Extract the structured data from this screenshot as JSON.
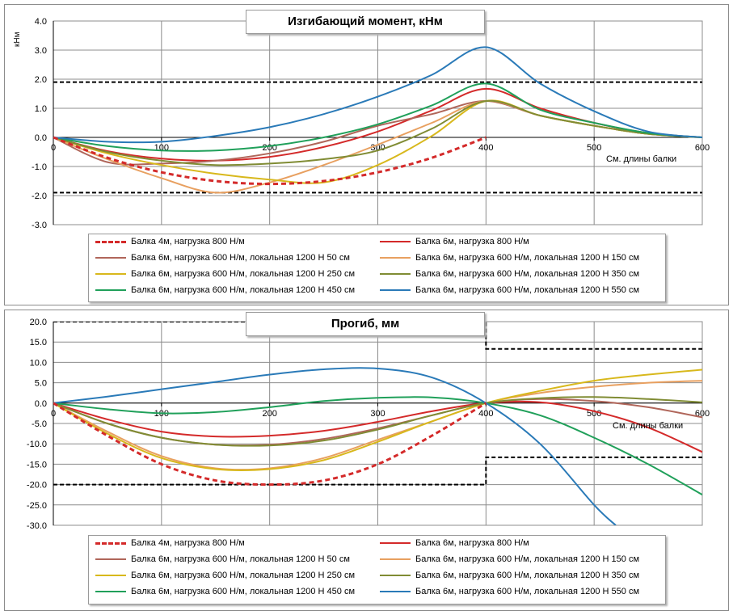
{
  "series_styles": [
    {
      "color": "#d42a2a",
      "dash": "6,4",
      "width": 3
    },
    {
      "color": "#d42a2a",
      "dash": "",
      "width": 2
    },
    {
      "color": "#b0665a",
      "dash": "",
      "width": 2
    },
    {
      "color": "#e8a060",
      "dash": "",
      "width": 2
    },
    {
      "color": "#d8b81c",
      "dash": "",
      "width": 2
    },
    {
      "color": "#808c34",
      "dash": "",
      "width": 2
    },
    {
      "color": "#20a05a",
      "dash": "",
      "width": 2
    },
    {
      "color": "#2a7ab8",
      "dash": "",
      "width": 2
    }
  ],
  "chart_data": [
    {
      "type": "line",
      "title": "Изгибающий  момент, кНм",
      "ylabel": "кНм",
      "xlabel": "См. длины балки",
      "xlim": [
        0,
        600
      ],
      "ylim": [
        -3,
        4
      ],
      "xticks": [
        "0",
        "100",
        "200",
        "300",
        "400",
        "500",
        "600"
      ],
      "yticks": [
        "4.0",
        "3.0",
        "2.0",
        "1.0",
        "0.0",
        "-1.0",
        "-2.0",
        "-3.0"
      ],
      "threshold_lines": [
        1.9,
        -1.9
      ],
      "series": [
        {
          "name": "Балка 4м, нагрузка 800 Н/м",
          "x": [
            0,
            50,
            100,
            150,
            200,
            250,
            300,
            350,
            400
          ],
          "y": [
            0,
            -0.7,
            -1.2,
            -1.5,
            -1.6,
            -1.5,
            -1.2,
            -0.7,
            0
          ]
        },
        {
          "name": "Балка 6м, нагрузка 800 Н/м",
          "x": [
            0,
            50,
            100,
            150,
            200,
            250,
            300,
            350,
            400,
            450,
            500,
            550,
            600
          ],
          "y": [
            0,
            -0.47,
            -0.73,
            -0.8,
            -0.67,
            -0.33,
            0.2,
            0.93,
            1.67,
            1.0,
            0.5,
            0.15,
            0
          ]
        },
        {
          "name": "Балка 6м, нагрузка 600 Н/м, локальная 1200 Н 50 см",
          "x": [
            0,
            50,
            100,
            150,
            200,
            250,
            300,
            350,
            400,
            450,
            500,
            550,
            600
          ],
          "y": [
            0,
            -0.85,
            -0.9,
            -0.8,
            -0.55,
            -0.15,
            0.4,
            0.8,
            1.25,
            0.75,
            0.4,
            0.12,
            0
          ]
        },
        {
          "name": "Балка 6м, нагрузка 600 Н/м, локальная 1200 Н 150 см",
          "x": [
            0,
            50,
            100,
            150,
            200,
            250,
            300,
            350,
            400,
            450,
            500,
            550,
            600
          ],
          "y": [
            0,
            -0.75,
            -1.4,
            -1.9,
            -1.55,
            -0.95,
            -0.25,
            0.5,
            1.25,
            0.75,
            0.4,
            0.12,
            0
          ]
        },
        {
          "name": "Балка 6м, нагрузка 600 Н/м, локальная 1200 Н 250 см",
          "x": [
            0,
            50,
            100,
            150,
            200,
            250,
            300,
            350,
            400,
            450,
            500,
            550,
            600
          ],
          "y": [
            0,
            -0.55,
            -0.95,
            -1.25,
            -1.45,
            -1.55,
            -0.95,
            0.05,
            1.25,
            0.75,
            0.4,
            0.12,
            0
          ]
        },
        {
          "name": "Балка 6м, нагрузка 600 Н/м, локальная 1200 Н 350 см",
          "x": [
            0,
            50,
            100,
            150,
            200,
            250,
            300,
            350,
            400,
            450,
            500,
            550,
            600
          ],
          "y": [
            0,
            -0.5,
            -0.8,
            -0.95,
            -0.9,
            -0.75,
            -0.45,
            0.3,
            1.25,
            0.75,
            0.4,
            0.12,
            0
          ]
        },
        {
          "name": "Балка 6м, нагрузка 600 Н/м, локальная 1200 Н 450 см",
          "x": [
            0,
            50,
            100,
            150,
            200,
            250,
            300,
            350,
            400,
            450,
            500,
            550,
            600
          ],
          "y": [
            0,
            -0.3,
            -0.45,
            -0.45,
            -0.3,
            0,
            0.45,
            1.1,
            1.85,
            0.95,
            0.5,
            0.15,
            0
          ]
        },
        {
          "name": "Балка 6м, нагрузка 600 Н/м, локальная 1200 Н 550 см",
          "x": [
            0,
            50,
            100,
            150,
            200,
            250,
            300,
            350,
            400,
            450,
            500,
            550,
            600
          ],
          "y": [
            0,
            -0.15,
            -0.15,
            0.05,
            0.35,
            0.8,
            1.4,
            2.15,
            3.1,
            1.85,
            0.9,
            0.2,
            0
          ]
        }
      ]
    },
    {
      "type": "line",
      "title": "Прогиб, мм",
      "xlabel": "См. длины балки",
      "xlim": [
        0,
        600
      ],
      "ylim": [
        -30,
        20
      ],
      "xticks": [
        "0",
        "100",
        "200",
        "300",
        "400",
        "500",
        "600"
      ],
      "yticks": [
        "20.0",
        "15.0",
        "10.0",
        "5.0",
        "0.0",
        "-5.0",
        "-10.0",
        "-15.0",
        "-20.0",
        "-25.0",
        "-30.0"
      ],
      "threshold_lines_upper": {
        "x": [
          0,
          400,
          400,
          600
        ],
        "y": [
          20,
          20,
          13.3,
          13.3
        ]
      },
      "threshold_lines_lower": {
        "x": [
          0,
          400,
          400,
          600
        ],
        "y": [
          -20,
          -20,
          -13.3,
          -13.3
        ]
      },
      "series": [
        {
          "name": "Балка 4м, нагрузка 800 Н/м",
          "x": [
            0,
            50,
            100,
            150,
            200,
            250,
            300,
            350,
            400
          ],
          "y": [
            0,
            -8,
            -15,
            -19,
            -20,
            -19,
            -15,
            -8,
            0
          ]
        },
        {
          "name": "Балка 6м, нагрузка 800 Н/м",
          "x": [
            0,
            50,
            100,
            150,
            200,
            250,
            300,
            350,
            400,
            450,
            500,
            550,
            600
          ],
          "y": [
            0,
            -4,
            -7,
            -8.2,
            -8,
            -6.8,
            -4.6,
            -2,
            0,
            0.2,
            -2,
            -6,
            -12
          ]
        },
        {
          "name": "Балка 6м, нагрузка 600 Н/м, локальная 1200 Н 50 см",
          "x": [
            0,
            50,
            100,
            150,
            200,
            250,
            300,
            350,
            400,
            450,
            500,
            550,
            600
          ],
          "y": [
            0,
            -5,
            -8.5,
            -10.2,
            -10.2,
            -8.8,
            -6.2,
            -3,
            0,
            1,
            0.5,
            -1,
            -3.5
          ]
        },
        {
          "name": "Балка 6м, нагрузка 600 Н/м, локальная 1200 Н 150 см",
          "x": [
            0,
            50,
            100,
            150,
            200,
            250,
            300,
            350,
            400,
            450,
            500,
            550,
            600
          ],
          "y": [
            0,
            -7,
            -13,
            -16,
            -16,
            -13.5,
            -9,
            -4.5,
            0,
            2.5,
            4,
            5,
            5.5
          ]
        },
        {
          "name": "Балка 6м, нагрузка 600 Н/м, локальная 1200 Н 250 см",
          "x": [
            0,
            50,
            100,
            150,
            200,
            250,
            300,
            350,
            400,
            450,
            500,
            550,
            600
          ],
          "y": [
            0,
            -7.5,
            -13.5,
            -16.2,
            -16.2,
            -14,
            -9.5,
            -4.5,
            0,
            3,
            5.5,
            7,
            8.2
          ]
        },
        {
          "name": "Балка 6м, нагрузка 600 Н/м, локальная 1200 Н 350 см",
          "x": [
            0,
            50,
            100,
            150,
            200,
            250,
            300,
            350,
            400,
            450,
            500,
            550,
            600
          ],
          "y": [
            0,
            -5,
            -8.5,
            -10.2,
            -10.4,
            -9.2,
            -6.5,
            -3,
            0,
            1.2,
            1.5,
            1,
            0.2
          ]
        },
        {
          "name": "Балка 6м, нагрузка 600 Н/м, локальная 1200 Н 450 см",
          "x": [
            0,
            50,
            100,
            150,
            200,
            250,
            300,
            350,
            400,
            450,
            500,
            550,
            600
          ],
          "y": [
            0,
            -1.5,
            -2.5,
            -2.2,
            -1,
            0.5,
            1.3,
            1.4,
            0,
            -3,
            -8.5,
            -15,
            -22.5
          ]
        },
        {
          "name": "Балка 6м, нагрузка 600 Н/м, локальная 1200 Н 550 см",
          "x": [
            0,
            50,
            100,
            150,
            200,
            250,
            300,
            350,
            400,
            450,
            500,
            520
          ],
          "y": [
            0,
            1.6,
            3.4,
            5.2,
            7,
            8.3,
            8.5,
            6.3,
            0,
            -10,
            -25,
            -30
          ]
        }
      ]
    }
  ]
}
